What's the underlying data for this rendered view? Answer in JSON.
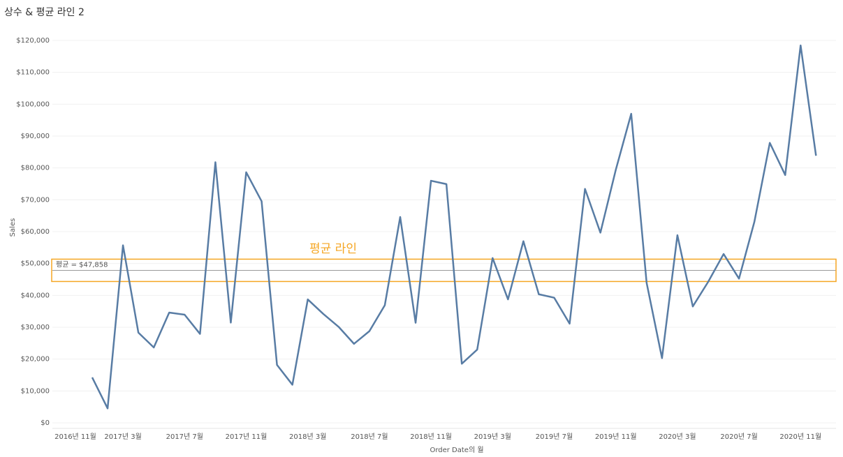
{
  "chart_data": {
    "type": "line",
    "title": "상수 & 평균 라인 2",
    "x_label": "Order Date의 월",
    "y_label": "Sales",
    "annotation": "평균 라인",
    "reference_line": {
      "value": 47858,
      "label": "평균 = $47,858",
      "color": "#999999"
    },
    "xlim": [
      -2,
      47
    ],
    "xticks": [
      {
        "value": -2,
        "label": "2016년 11월"
      },
      {
        "value": 2,
        "label": "2017년 3월"
      },
      {
        "value": 6,
        "label": "2017년 7월"
      },
      {
        "value": 10,
        "label": "2017년 11월"
      },
      {
        "value": 14,
        "label": "2018년 3월"
      },
      {
        "value": 18,
        "label": "2018년 7월"
      },
      {
        "value": 22,
        "label": "2018년 11월"
      },
      {
        "value": 26,
        "label": "2019년 3월"
      },
      {
        "value": 30,
        "label": "2019년 7월"
      },
      {
        "value": 34,
        "label": "2019년 11월"
      },
      {
        "value": 38,
        "label": "2020년 3월"
      },
      {
        "value": 42,
        "label": "2020년 7월"
      },
      {
        "value": 46,
        "label": "2020년 11월"
      }
    ],
    "series": [
      {
        "name": "Sales",
        "color": "#587ca4",
        "values": [
          14237,
          4520,
          55691,
          28295,
          23648,
          34595,
          33946,
          27909,
          81777,
          31453,
          78629,
          69546,
          18174,
          11951,
          38726,
          34195,
          30132,
          24797,
          28765,
          36898,
          64596,
          31405,
          75973,
          74920,
          18542,
          22979,
          51716,
          38750,
          56988,
          40344,
          39262,
          31115,
          73410,
          59688,
          79412,
          96999,
          43971,
          20301,
          58872,
          36522,
          44261,
          52982,
          45264,
          63121,
          87867,
          77777,
          118448,
          83829
        ]
      }
    ],
    "ylim": [
      0,
      120000
    ],
    "yticks": [
      {
        "value": 0,
        "label": "$0"
      },
      {
        "value": 10000,
        "label": "$10,000"
      },
      {
        "value": 20000,
        "label": "$20,000"
      },
      {
        "value": 30000,
        "label": "$30,000"
      },
      {
        "value": 40000,
        "label": "$40,000"
      },
      {
        "value": 50000,
        "label": "$50,000"
      },
      {
        "value": 60000,
        "label": "$60,000"
      },
      {
        "value": 70000,
        "label": "$70,000"
      },
      {
        "value": 80000,
        "label": "$80,000"
      },
      {
        "value": 90000,
        "label": "$90,000"
      },
      {
        "value": 100000,
        "label": "$100,000"
      },
      {
        "value": 110000,
        "label": "$110,000"
      },
      {
        "value": 120000,
        "label": "$120,000"
      }
    ],
    "grid": true
  }
}
